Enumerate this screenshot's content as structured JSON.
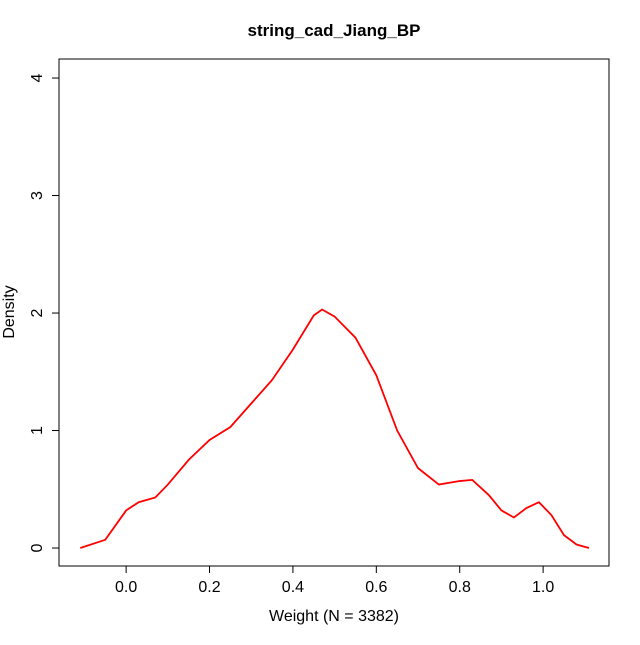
{
  "chart_data": {
    "type": "line",
    "title": "string_cad_Jiang_BP",
    "xlabel": "Weight (N = 3382)",
    "ylabel": "Density",
    "x": [
      -0.11,
      -0.05,
      0.0,
      0.03,
      0.07,
      0.1,
      0.15,
      0.2,
      0.25,
      0.3,
      0.35,
      0.4,
      0.45,
      0.47,
      0.5,
      0.55,
      0.6,
      0.65,
      0.7,
      0.75,
      0.8,
      0.83,
      0.87,
      0.9,
      0.93,
      0.96,
      0.99,
      1.02,
      1.05,
      1.08,
      1.11
    ],
    "series": [
      {
        "name": "Density",
        "color": "#ff0000",
        "values": [
          0.0,
          0.07,
          0.32,
          0.39,
          0.43,
          0.54,
          0.75,
          0.92,
          1.03,
          1.23,
          1.43,
          1.69,
          1.98,
          2.03,
          1.97,
          1.79,
          1.47,
          1.0,
          0.68,
          0.54,
          0.57,
          0.58,
          0.45,
          0.32,
          0.26,
          0.34,
          0.39,
          0.28,
          0.11,
          0.03,
          0.0
        ]
      }
    ],
    "xlim": [
      -0.161,
      1.158
    ],
    "ylim": [
      -0.153,
      4.162
    ],
    "xticks": [
      {
        "value": 0.0,
        "label": "0.0"
      },
      0.2,
      0.4,
      0.6,
      0.8,
      {
        "value": 1.0,
        "label": "1.0"
      }
    ],
    "yticks": [
      0,
      1,
      2,
      3,
      4
    ],
    "grid": false
  }
}
